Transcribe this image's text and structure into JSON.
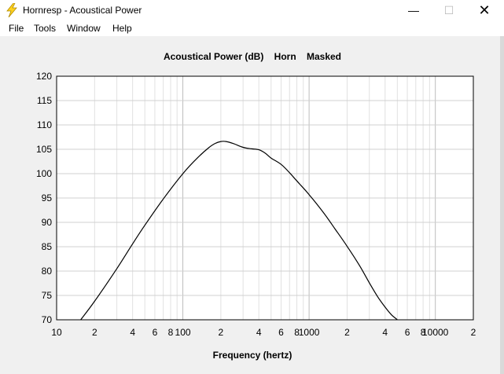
{
  "window": {
    "title": "Hornresp - Acoustical Power",
    "controls": {
      "minimize": "—",
      "maximize": "☐",
      "close": "✕"
    }
  },
  "menu": [
    "File",
    "Tools",
    "Window",
    "Help"
  ],
  "chart_data": {
    "type": "line",
    "title": "Acoustical Power (dB)    Horn    Masked",
    "xlabel": "Frequency (hertz)",
    "ylabel": "",
    "x_scale": "log",
    "xlim": [
      10,
      20000
    ],
    "ylim": [
      70,
      120
    ],
    "grid": true,
    "y_ticks": [
      120,
      115,
      110,
      105,
      100,
      95,
      90,
      85,
      80,
      75,
      70
    ],
    "x_ticks": [
      {
        "value": 10,
        "label": "10"
      },
      {
        "value": 20,
        "label": "2"
      },
      {
        "value": 40,
        "label": "4"
      },
      {
        "value": 60,
        "label": "6"
      },
      {
        "value": 80,
        "label": "8"
      },
      {
        "value": 100,
        "label": "100"
      },
      {
        "value": 200,
        "label": "2"
      },
      {
        "value": 400,
        "label": "4"
      },
      {
        "value": 600,
        "label": "6"
      },
      {
        "value": 800,
        "label": "8"
      },
      {
        "value": 1000,
        "label": "1000"
      },
      {
        "value": 2000,
        "label": "2"
      },
      {
        "value": 4000,
        "label": "4"
      },
      {
        "value": 6000,
        "label": "6"
      },
      {
        "value": 8000,
        "label": "8"
      },
      {
        "value": 10000,
        "label": "10000"
      },
      {
        "value": 20000,
        "label": "2"
      }
    ],
    "series": [
      {
        "color": "#000000",
        "x": [
          15.5,
          20,
          30,
          40,
          50,
          70,
          100,
          130,
          160,
          180,
          200,
          220,
          250,
          300,
          350,
          400,
          450,
          500,
          600,
          700,
          800,
          1000,
          1300,
          1600,
          2000,
          2500,
          3000,
          3500,
          4000,
          4500,
          5000,
          5300
        ],
        "y": [
          70,
          73.8,
          80.5,
          85.6,
          89.4,
          94.8,
          100.0,
          103.2,
          105.3,
          106.2,
          106.6,
          106.6,
          106.2,
          105.4,
          105.1,
          104.9,
          104.2,
          103.2,
          101.9,
          100.2,
          98.5,
          95.7,
          92.0,
          88.7,
          85.1,
          81.2,
          77.6,
          74.7,
          72.6,
          71.0,
          70.0,
          69.2
        ]
      }
    ]
  }
}
